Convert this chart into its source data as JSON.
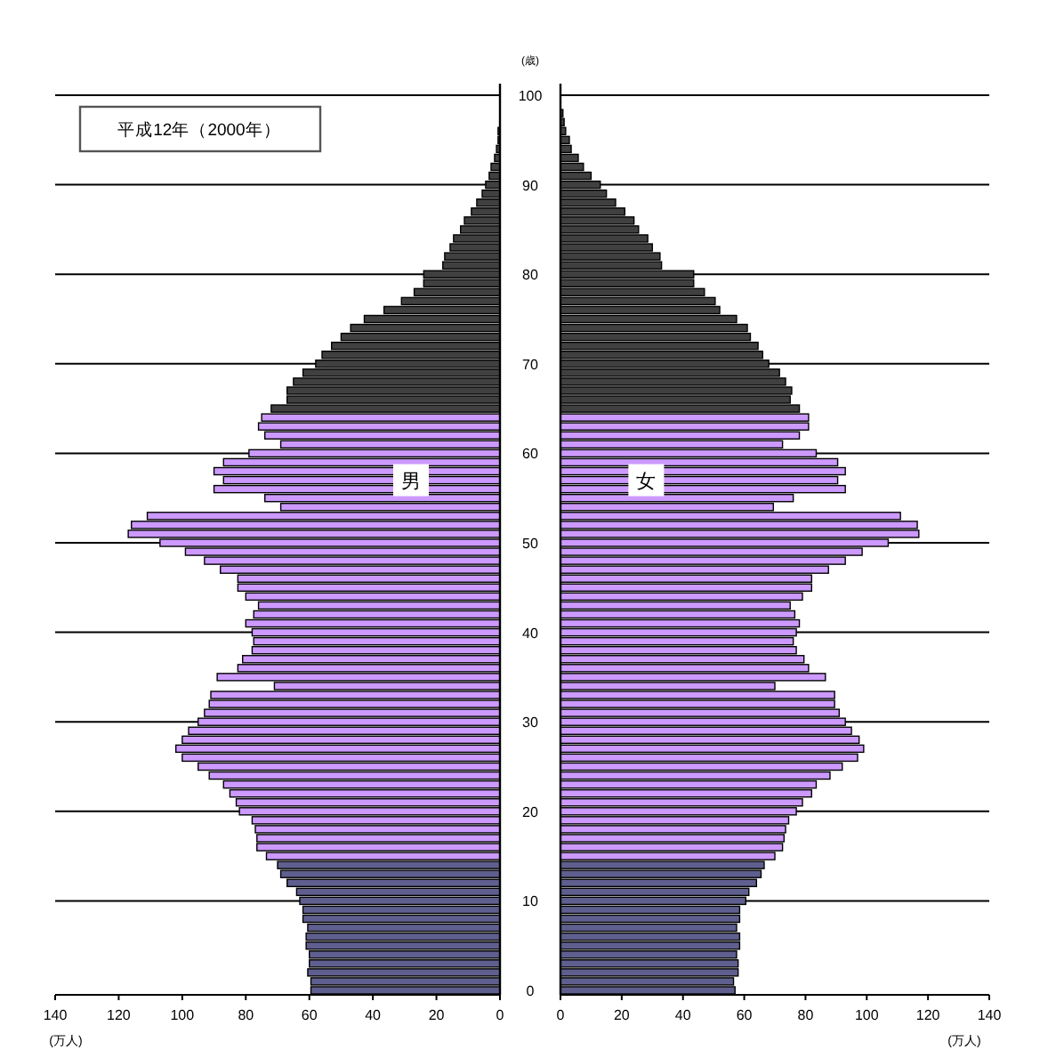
{
  "chart_data": [
    {
      "type": "bar",
      "orientation": "horizontal",
      "xlabel": "(万人)",
      "xlim": [
        140,
        0
      ],
      "xticks": [
        140,
        120,
        100,
        80,
        60,
        40,
        20,
        0
      ],
      "grid": "y",
      "tick_labels": "x",
      "annotations": [
        "平成12年（2000年）",
        "男"
      ],
      "categories": [
        "100",
        null,
        null,
        null,
        null,
        null,
        null,
        null,
        null,
        null,
        "90",
        null,
        null,
        null,
        null,
        null,
        null,
        null,
        null,
        null,
        "80",
        null,
        null,
        null,
        null,
        null,
        null,
        null,
        null,
        null,
        "70",
        null,
        null,
        null,
        null,
        null,
        null,
        null,
        null,
        null,
        "60",
        null,
        null,
        null,
        null,
        null,
        null,
        null,
        null,
        null,
        "50",
        null,
        null,
        null,
        null,
        null,
        null,
        null,
        null,
        null,
        "40",
        null,
        null,
        null,
        null,
        null,
        null,
        null,
        null,
        null,
        "30",
        null,
        null,
        null,
        null,
        null,
        null,
        null,
        null,
        null,
        "20",
        null,
        null,
        null,
        null,
        null,
        null,
        null,
        null,
        null,
        "10",
        null,
        null,
        null,
        null,
        null,
        null,
        null,
        null,
        null,
        "0"
      ],
      "values": [
        null,
        null,
        null,
        null,
        0.6,
        0.6,
        1.1,
        1.7,
        2.8,
        3.4,
        4.5,
        5.6,
        7.3,
        9,
        11.2,
        12.4,
        14.6,
        15.7,
        17.4,
        18,
        24,
        24,
        27,
        31,
        36.5,
        42.7,
        47,
        50,
        53,
        56,
        58,
        62,
        65,
        67,
        67,
        72,
        75,
        76,
        74,
        69,
        79,
        87,
        90,
        87,
        90,
        74,
        69,
        111,
        116,
        117,
        107,
        99,
        93,
        88,
        82.5,
        82.5,
        80,
        76,
        77.5,
        80,
        78,
        77.5,
        78,
        81,
        82.5,
        89,
        71,
        91,
        91.5,
        93,
        95,
        98,
        100,
        102,
        100,
        95,
        91.5,
        87,
        85,
        83,
        82,
        78,
        77,
        76.5,
        76.5,
        73.5,
        70,
        69,
        67,
        64,
        63,
        62,
        62,
        60.5,
        61,
        61,
        60,
        60,
        60.5,
        59.5,
        59.5
      ],
      "colors": [
        null,
        null,
        null,
        null,
        "#404040",
        "#404040",
        "#404040",
        "#404040",
        "#404040",
        "#404040",
        "#404040",
        "#404040",
        "#404040",
        "#404040",
        "#404040",
        "#404040",
        "#404040",
        "#404040",
        "#404040",
        "#404040",
        "#404040",
        "#404040",
        "#404040",
        "#404040",
        "#404040",
        "#404040",
        "#404040",
        "#404040",
        "#404040",
        "#404040",
        "#404040",
        "#404040",
        "#404040",
        "#404040",
        "#404040",
        "#404040",
        "#cc99ff",
        "#cc99ff",
        "#cc99ff",
        "#cc99ff",
        "#cc99ff",
        "#cc99ff",
        "#cc99ff",
        "#cc99ff",
        "#cc99ff",
        "#cc99ff",
        "#cc99ff",
        "#cc99ff",
        "#cc99ff",
        "#cc99ff",
        "#cc99ff",
        "#cc99ff",
        "#cc99ff",
        "#cc99ff",
        "#cc99ff",
        "#cc99ff",
        "#cc99ff",
        "#cc99ff",
        "#cc99ff",
        "#cc99ff",
        "#cc99ff",
        "#cc99ff",
        "#cc99ff",
        "#cc99ff",
        "#cc99ff",
        "#cc99ff",
        "#cc99ff",
        "#cc99ff",
        "#cc99ff",
        "#cc99ff",
        "#cc99ff",
        "#cc99ff",
        "#cc99ff",
        "#cc99ff",
        "#cc99ff",
        "#cc99ff",
        "#cc99ff",
        "#cc99ff",
        "#cc99ff",
        "#cc99ff",
        "#cc99ff",
        "#cc99ff",
        "#cc99ff",
        "#cc99ff",
        "#cc99ff",
        "#cc99ff",
        "#5f5f8f",
        "#5f5f8f",
        "#5f5f8f",
        "#5f5f8f",
        "#5f5f8f",
        "#5f5f8f",
        "#5f5f8f",
        "#5f5f8f",
        "#5f5f8f",
        "#5f5f8f",
        "#5f5f8f",
        "#5f5f8f",
        "#5f5f8f",
        "#5f5f8f",
        "#5f5f8f"
      ]
    },
    {
      "type": "bar",
      "orientation": "horizontal",
      "xlabel": "(万人)",
      "ylabel": "(歳)",
      "xlim": [
        0,
        140
      ],
      "xticks": [
        0,
        20,
        40,
        60,
        80,
        100,
        120,
        140
      ],
      "grid": "y",
      "annotations": [
        "女"
      ],
      "categories": [
        "100",
        null,
        null,
        null,
        null,
        null,
        null,
        null,
        null,
        null,
        "90",
        null,
        null,
        null,
        null,
        null,
        null,
        null,
        null,
        null,
        "80",
        null,
        null,
        null,
        null,
        null,
        null,
        null,
        null,
        null,
        "70",
        null,
        null,
        null,
        null,
        null,
        null,
        null,
        null,
        null,
        "60",
        null,
        null,
        null,
        null,
        null,
        null,
        null,
        null,
        null,
        "50",
        null,
        null,
        null,
        null,
        null,
        null,
        null,
        null,
        null,
        "40",
        null,
        null,
        null,
        null,
        null,
        null,
        null,
        null,
        null,
        "30",
        null,
        null,
        null,
        null,
        null,
        null,
        null,
        null,
        null,
        "20",
        null,
        null,
        null,
        null,
        null,
        null,
        null,
        null,
        null,
        "10",
        null,
        null,
        null,
        null,
        null,
        null,
        null,
        null,
        null,
        "0"
      ],
      "values": [
        null,
        null,
        0.8,
        1.2,
        1.7,
        2.9,
        3.5,
        5.8,
        7.5,
        10,
        13,
        15,
        18,
        21,
        24,
        25.5,
        28.5,
        30,
        32.5,
        33,
        43.5,
        43.5,
        47,
        50.5,
        52,
        57.5,
        61,
        62,
        64.5,
        66,
        68,
        71.5,
        73.5,
        75.5,
        75,
        78,
        81,
        81,
        78,
        72.5,
        83.5,
        90.5,
        93,
        90.5,
        93,
        76,
        69.5,
        111,
        116.5,
        117,
        107,
        98.5,
        93,
        87.5,
        82,
        82,
        79,
        75,
        76.5,
        78,
        77,
        76,
        77,
        79.5,
        81,
        86.5,
        70,
        89.5,
        89.5,
        91,
        93,
        95,
        97.5,
        99,
        97,
        92,
        88,
        83.5,
        82,
        79,
        77,
        74.5,
        73.5,
        73,
        72.5,
        70,
        66.5,
        65.5,
        64,
        61.5,
        60.5,
        58.5,
        58.5,
        57.5,
        58.5,
        58.5,
        57.5,
        58,
        58,
        56.5,
        57
      ],
      "colors": [
        null,
        null,
        "#404040",
        "#404040",
        "#404040",
        "#404040",
        "#404040",
        "#404040",
        "#404040",
        "#404040",
        "#404040",
        "#404040",
        "#404040",
        "#404040",
        "#404040",
        "#404040",
        "#404040",
        "#404040",
        "#404040",
        "#404040",
        "#404040",
        "#404040",
        "#404040",
        "#404040",
        "#404040",
        "#404040",
        "#404040",
        "#404040",
        "#404040",
        "#404040",
        "#404040",
        "#404040",
        "#404040",
        "#404040",
        "#404040",
        "#404040",
        "#cc99ff",
        "#cc99ff",
        "#cc99ff",
        "#cc99ff",
        "#cc99ff",
        "#cc99ff",
        "#cc99ff",
        "#cc99ff",
        "#cc99ff",
        "#cc99ff",
        "#cc99ff",
        "#cc99ff",
        "#cc99ff",
        "#cc99ff",
        "#cc99ff",
        "#cc99ff",
        "#cc99ff",
        "#cc99ff",
        "#cc99ff",
        "#cc99ff",
        "#cc99ff",
        "#cc99ff",
        "#cc99ff",
        "#cc99ff",
        "#cc99ff",
        "#cc99ff",
        "#cc99ff",
        "#cc99ff",
        "#cc99ff",
        "#cc99ff",
        "#cc99ff",
        "#cc99ff",
        "#cc99ff",
        "#cc99ff",
        "#cc99ff",
        "#cc99ff",
        "#cc99ff",
        "#cc99ff",
        "#cc99ff",
        "#cc99ff",
        "#cc99ff",
        "#cc99ff",
        "#cc99ff",
        "#cc99ff",
        "#cc99ff",
        "#cc99ff",
        "#cc99ff",
        "#cc99ff",
        "#cc99ff",
        "#cc99ff",
        "#5f5f8f",
        "#5f5f8f",
        "#5f5f8f",
        "#5f5f8f",
        "#5f5f8f",
        "#5f5f8f",
        "#5f5f8f",
        "#5f5f8f",
        "#5f5f8f",
        "#5f5f8f",
        "#5f5f8f",
        "#5f5f8f",
        "#5f5f8f",
        "#5f5f8f",
        "#5f5f8f"
      ]
    }
  ]
}
